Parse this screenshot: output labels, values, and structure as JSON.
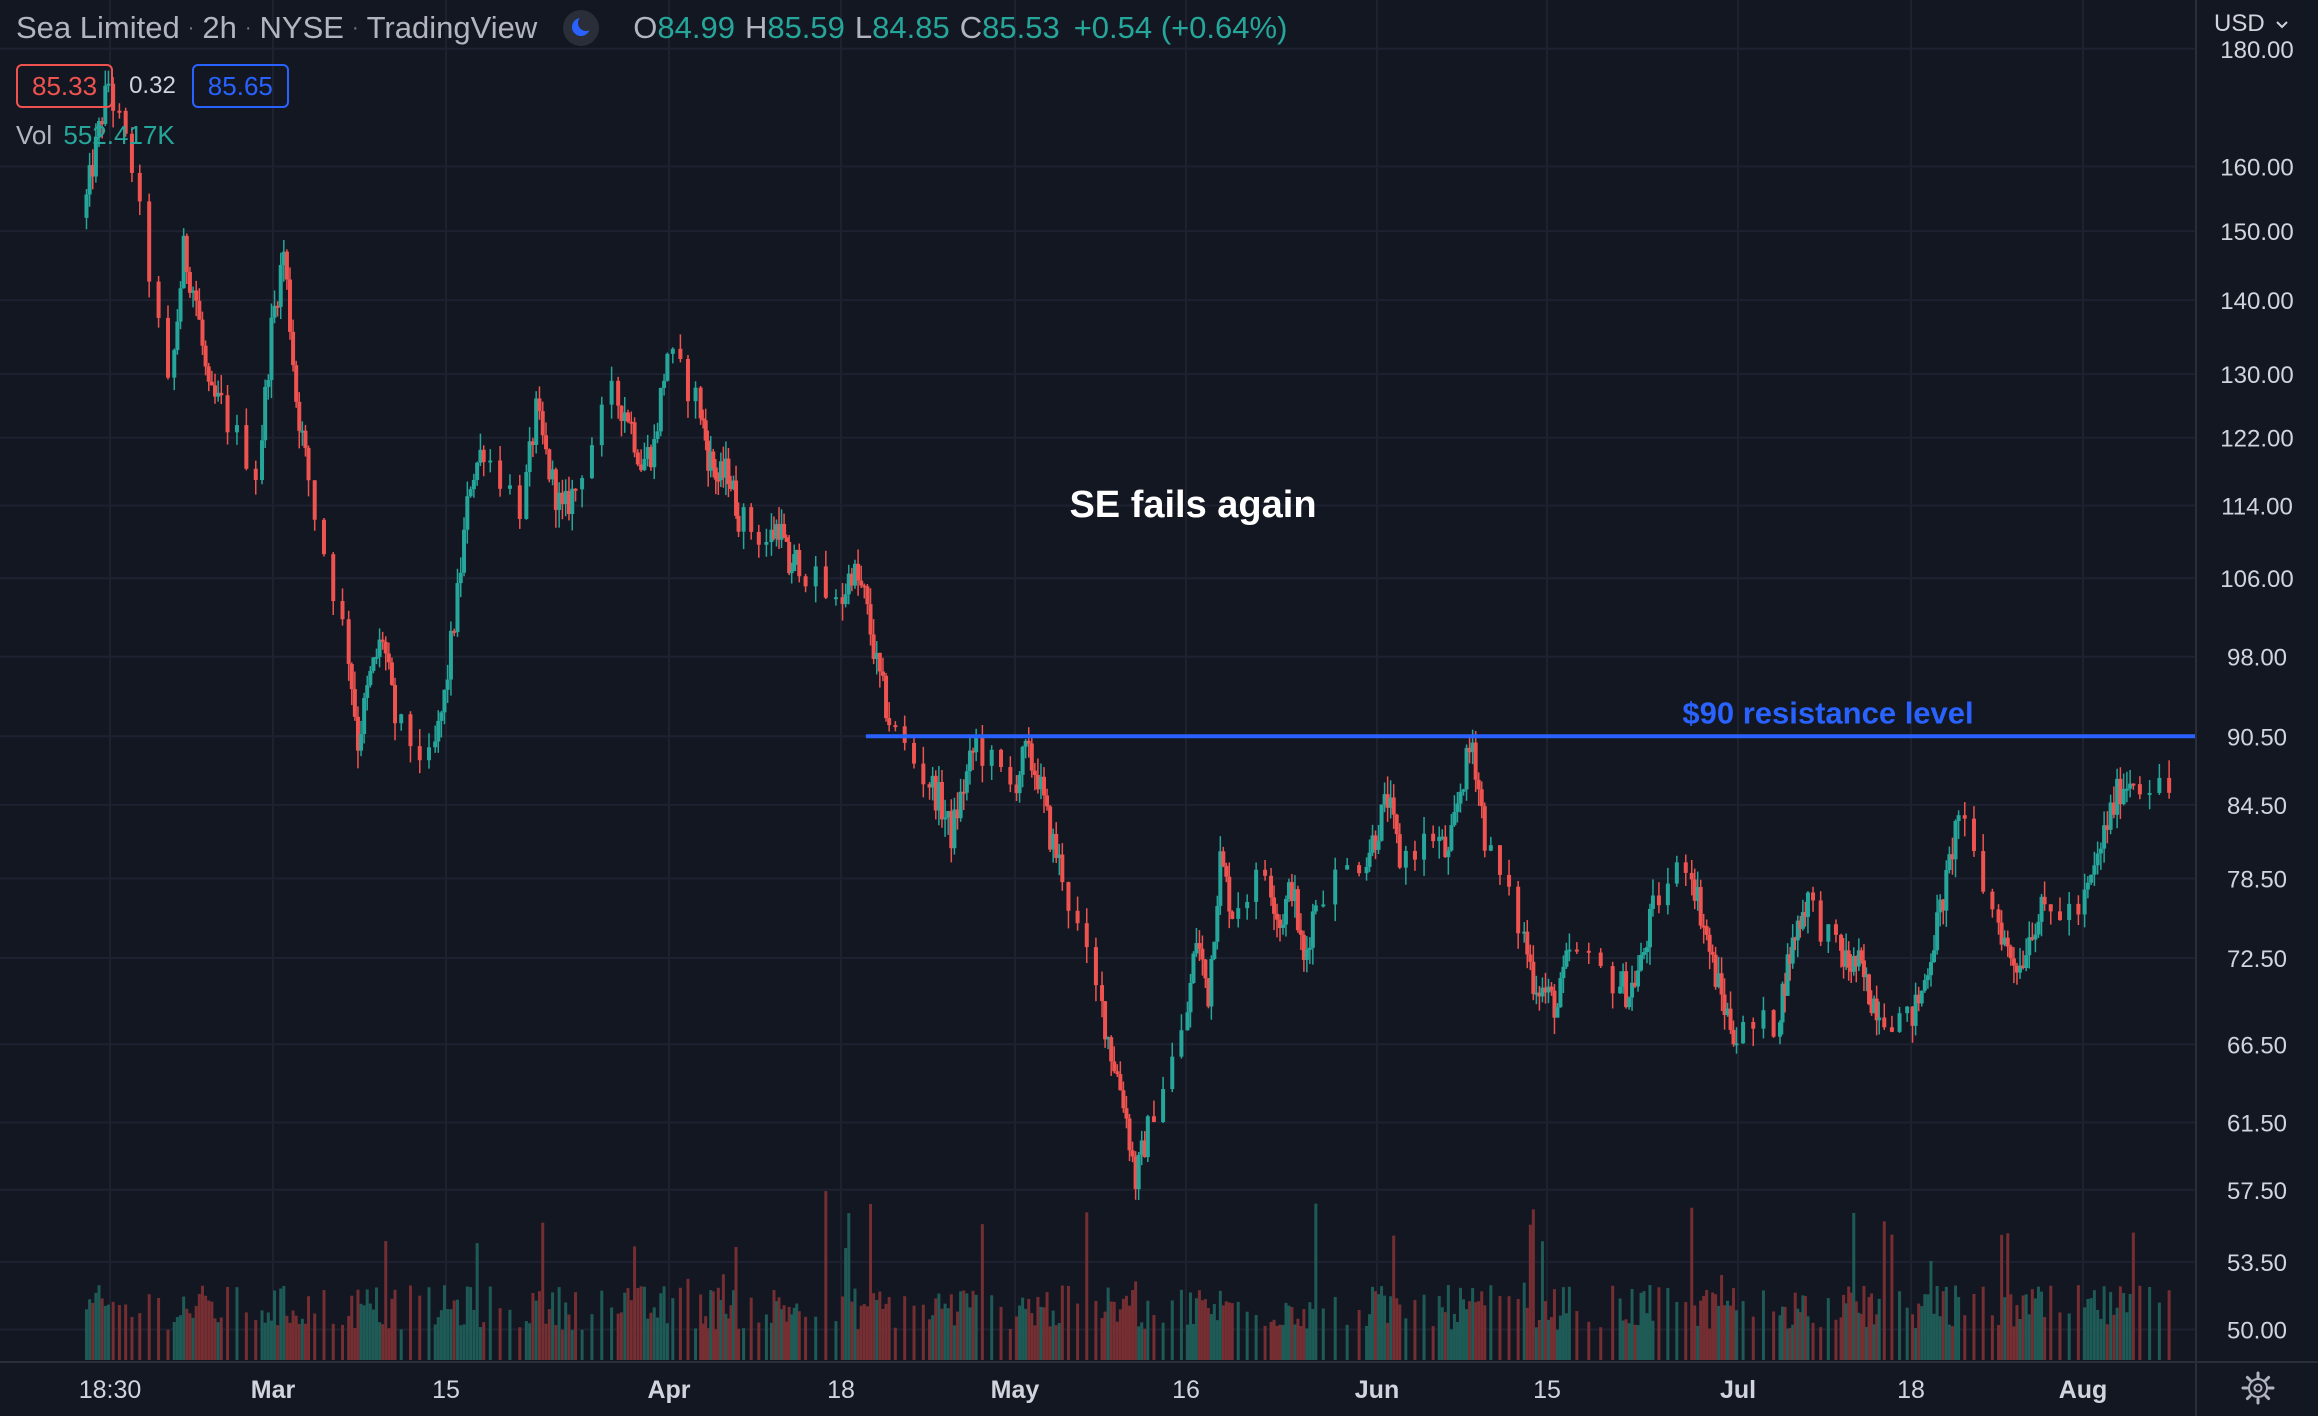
{
  "header": {
    "symbol": "Sea Limited",
    "interval": "2h",
    "exchange": "NYSE",
    "source": "TradingView",
    "separator": "·",
    "ohlc": {
      "o_label": "O",
      "o": "84.99",
      "h_label": "H",
      "h": "85.59",
      "l_label": "L",
      "l": "84.85",
      "c_label": "C",
      "c": "85.53",
      "change": "+0.54 (+0.64%)"
    },
    "bid": "85.33",
    "spread": "0.32",
    "ask": "85.65",
    "volume_label": "Vol",
    "volume_value": "552.417K"
  },
  "currency_label": "USD",
  "icons": {
    "theme": "moon-icon",
    "currency_dropdown": "chevron-down-icon",
    "settings": "gear-icon"
  },
  "colors": {
    "background": "#131722",
    "grid": "#1e2230",
    "up": "#26a69a",
    "down": "#ef5350",
    "resistance": "#2962ff",
    "axis_text": "#d1d4dc"
  },
  "chart_data": {
    "type": "candlestick",
    "title": "Sea Limited · 2h · NYSE",
    "y_scale": "log",
    "ylim": [
      48.5,
      189
    ],
    "y_ticks": [
      "180.00",
      "160.00",
      "150.00",
      "140.00",
      "130.00",
      "122.00",
      "114.00",
      "106.00",
      "98.00",
      "90.50",
      "84.50",
      "78.50",
      "72.50",
      "66.50",
      "61.50",
      "57.50",
      "53.50",
      "50.00"
    ],
    "x_ticks": [
      {
        "label": "18:30",
        "date": "2022-02-16"
      },
      {
        "label": "Mar",
        "date": "2022-03-01"
      },
      {
        "label": "15",
        "date": "2022-03-15"
      },
      {
        "label": "Apr",
        "date": "2022-04-01"
      },
      {
        "label": "18",
        "date": "2022-04-18"
      },
      {
        "label": "May",
        "date": "2022-05-02"
      },
      {
        "label": "16",
        "date": "2022-05-16"
      },
      {
        "label": "Jun",
        "date": "2022-06-01"
      },
      {
        "label": "15",
        "date": "2022-06-15"
      },
      {
        "label": "Jul",
        "date": "2022-07-01"
      },
      {
        "label": "18",
        "date": "2022-07-18"
      },
      {
        "label": "Aug",
        "date": "2022-08-01"
      }
    ],
    "price_path": [
      {
        "date": "2022-02-14",
        "close": 152
      },
      {
        "date": "2022-02-15",
        "close": 163
      },
      {
        "date": "2022-02-16",
        "close": 174
      },
      {
        "date": "2022-02-18",
        "close": 160
      },
      {
        "date": "2022-02-21",
        "close": 128
      },
      {
        "date": "2022-02-22",
        "close": 147
      },
      {
        "date": "2022-02-23",
        "close": 140
      },
      {
        "date": "2022-02-24",
        "close": 127
      },
      {
        "date": "2022-02-25",
        "close": 126
      },
      {
        "date": "2022-02-28",
        "close": 118
      },
      {
        "date": "2022-03-01",
        "close": 136
      },
      {
        "date": "2022-03-02",
        "close": 147
      },
      {
        "date": "2022-03-03",
        "close": 127
      },
      {
        "date": "2022-03-04",
        "close": 117
      },
      {
        "date": "2022-03-07",
        "close": 101
      },
      {
        "date": "2022-03-08",
        "close": 90
      },
      {
        "date": "2022-03-09",
        "close": 96
      },
      {
        "date": "2022-03-10",
        "close": 100
      },
      {
        "date": "2022-03-11",
        "close": 92
      },
      {
        "date": "2022-03-14",
        "close": 88
      },
      {
        "date": "2022-03-15",
        "close": 94
      },
      {
        "date": "2022-03-16",
        "close": 104
      },
      {
        "date": "2022-03-17",
        "close": 117
      },
      {
        "date": "2022-03-18",
        "close": 121
      },
      {
        "date": "2022-03-21",
        "close": 114
      },
      {
        "date": "2022-03-22",
        "close": 125
      },
      {
        "date": "2022-03-23",
        "close": 118
      },
      {
        "date": "2022-03-24",
        "close": 113
      },
      {
        "date": "2022-03-25",
        "close": 116
      },
      {
        "date": "2022-03-28",
        "close": 127
      },
      {
        "date": "2022-03-29",
        "close": 125
      },
      {
        "date": "2022-03-30",
        "close": 119
      },
      {
        "date": "2022-03-31",
        "close": 121
      },
      {
        "date": "2022-04-01",
        "close": 133
      },
      {
        "date": "2022-04-04",
        "close": 127
      },
      {
        "date": "2022-04-05",
        "close": 120
      },
      {
        "date": "2022-04-06",
        "close": 117
      },
      {
        "date": "2022-04-07",
        "close": 118
      },
      {
        "date": "2022-04-08",
        "close": 113
      },
      {
        "date": "2022-04-11",
        "close": 110
      },
      {
        "date": "2022-04-12",
        "close": 112
      },
      {
        "date": "2022-04-13",
        "close": 107
      },
      {
        "date": "2022-04-14",
        "close": 108
      },
      {
        "date": "2022-04-18",
        "close": 103
      },
      {
        "date": "2022-04-19",
        "close": 107
      },
      {
        "date": "2022-04-20",
        "close": 104
      },
      {
        "date": "2022-04-21",
        "close": 97
      },
      {
        "date": "2022-04-22",
        "close": 92
      },
      {
        "date": "2022-04-25",
        "close": 87
      },
      {
        "date": "2022-04-26",
        "close": 85
      },
      {
        "date": "2022-04-27",
        "close": 82
      },
      {
        "date": "2022-04-28",
        "close": 86
      },
      {
        "date": "2022-04-29",
        "close": 90
      },
      {
        "date": "2022-05-02",
        "close": 86
      },
      {
        "date": "2022-05-03",
        "close": 89
      },
      {
        "date": "2022-05-04",
        "close": 87
      },
      {
        "date": "2022-05-05",
        "close": 82
      },
      {
        "date": "2022-05-06",
        "close": 79
      },
      {
        "date": "2022-05-09",
        "close": 70
      },
      {
        "date": "2022-05-10",
        "close": 66
      },
      {
        "date": "2022-05-11",
        "close": 63
      },
      {
        "date": "2022-05-12",
        "close": 58
      },
      {
        "date": "2022-05-13",
        "close": 61
      },
      {
        "date": "2022-05-16",
        "close": 67
      },
      {
        "date": "2022-05-17",
        "close": 74
      },
      {
        "date": "2022-05-18",
        "close": 70
      },
      {
        "date": "2022-05-19",
        "close": 80
      },
      {
        "date": "2022-05-20",
        "close": 76
      },
      {
        "date": "2022-05-23",
        "close": 79
      },
      {
        "date": "2022-05-24",
        "close": 75
      },
      {
        "date": "2022-05-25",
        "close": 78
      },
      {
        "date": "2022-05-26",
        "close": 72
      },
      {
        "date": "2022-05-27",
        "close": 77
      },
      {
        "date": "2022-05-31",
        "close": 80
      },
      {
        "date": "2022-06-01",
        "close": 82
      },
      {
        "date": "2022-06-02",
        "close": 85
      },
      {
        "date": "2022-06-03",
        "close": 80
      },
      {
        "date": "2022-06-06",
        "close": 82
      },
      {
        "date": "2022-06-07",
        "close": 80
      },
      {
        "date": "2022-06-08",
        "close": 86
      },
      {
        "date": "2022-06-09",
        "close": 90
      },
      {
        "date": "2022-06-10",
        "close": 82
      },
      {
        "date": "2022-06-13",
        "close": 75
      },
      {
        "date": "2022-06-14",
        "close": 71
      },
      {
        "date": "2022-06-15",
        "close": 70
      },
      {
        "date": "2022-06-16",
        "close": 69
      },
      {
        "date": "2022-06-17",
        "close": 73
      },
      {
        "date": "2022-06-21",
        "close": 71
      },
      {
        "date": "2022-06-22",
        "close": 70
      },
      {
        "date": "2022-06-23",
        "close": 72
      },
      {
        "date": "2022-06-24",
        "close": 76
      },
      {
        "date": "2022-06-27",
        "close": 80
      },
      {
        "date": "2022-06-28",
        "close": 76
      },
      {
        "date": "2022-06-29",
        "close": 72
      },
      {
        "date": "2022-06-30",
        "close": 69
      },
      {
        "date": "2022-07-01",
        "close": 67
      },
      {
        "date": "2022-07-05",
        "close": 68
      },
      {
        "date": "2022-07-06",
        "close": 72
      },
      {
        "date": "2022-07-07",
        "close": 75
      },
      {
        "date": "2022-07-08",
        "close": 77
      },
      {
        "date": "2022-07-11",
        "close": 73
      },
      {
        "date": "2022-07-12",
        "close": 72
      },
      {
        "date": "2022-07-13",
        "close": 72
      },
      {
        "date": "2022-07-14",
        "close": 70
      },
      {
        "date": "2022-07-15",
        "close": 69
      },
      {
        "date": "2022-07-18",
        "close": 68
      },
      {
        "date": "2022-07-19",
        "close": 70
      },
      {
        "date": "2022-07-20",
        "close": 74
      },
      {
        "date": "2022-07-21",
        "close": 78
      },
      {
        "date": "2022-07-22",
        "close": 84
      },
      {
        "date": "2022-07-25",
        "close": 76
      },
      {
        "date": "2022-07-26",
        "close": 73
      },
      {
        "date": "2022-07-27",
        "close": 72
      },
      {
        "date": "2022-07-28",
        "close": 75
      },
      {
        "date": "2022-07-29",
        "close": 76
      },
      {
        "date": "2022-08-01",
        "close": 76
      },
      {
        "date": "2022-08-02",
        "close": 79
      },
      {
        "date": "2022-08-03",
        "close": 83
      },
      {
        "date": "2022-08-04",
        "close": 86
      },
      {
        "date": "2022-08-05",
        "close": 87
      },
      {
        "date": "2022-08-08",
        "close": 85.5
      }
    ],
    "resistance": {
      "label": "$90 resistance level",
      "price": 90.5,
      "start_date": "2022-04-20"
    },
    "annotation": {
      "text": "SE fails again"
    }
  }
}
